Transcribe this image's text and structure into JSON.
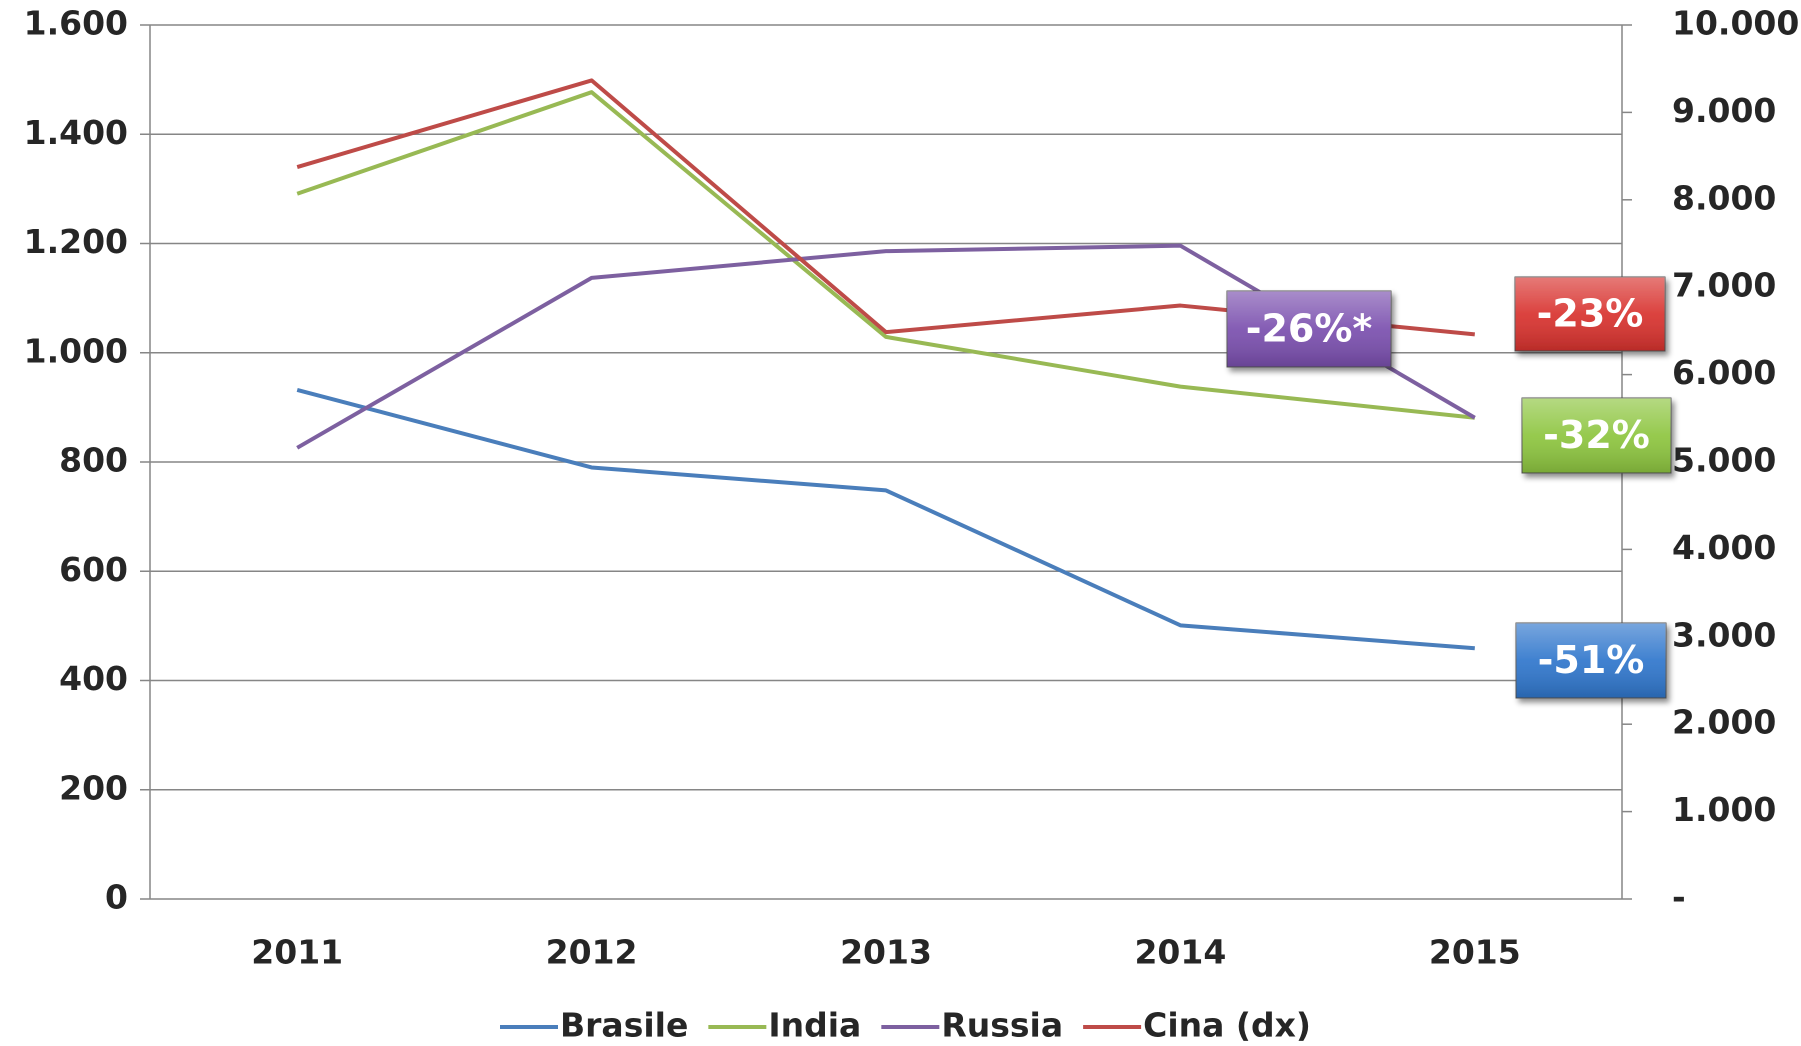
{
  "chart_data": {
    "type": "line",
    "categories": [
      "2011",
      "2012",
      "2013",
      "2014",
      "2015"
    ],
    "series": [
      {
        "name": "Brasile",
        "color": "#4a7ebb",
        "values": [
          932,
          790,
          748,
          501,
          459
        ]
      },
      {
        "name": "India",
        "color": "#98b954",
        "values": [
          1291,
          1477,
          1029,
          938,
          881
        ]
      },
      {
        "name": "Russia",
        "color": "#7d60a0",
        "values": [
          826,
          1137,
          1186,
          1196,
          881
        ]
      },
      {
        "name": "Cina (dx)",
        "color": "#be4b48",
        "axis": "y2",
        "values": [
          8375,
          9366,
          6486,
          6790,
          6460
        ]
      }
    ],
    "ylim": [
      0,
      1600
    ],
    "yticks": [
      0,
      200,
      400,
      600,
      800,
      {
        "value": 1000,
        "label": "1.000"
      },
      {
        "value": 1200,
        "label": "1.200"
      },
      {
        "value": 1400,
        "label": "1.400"
      },
      {
        "value": 1600,
        "label": "1.600"
      }
    ],
    "y2lim": [
      0,
      10000
    ],
    "y2ticks": [
      {
        "value": 0,
        "label": "-"
      },
      {
        "value": 1000,
        "label": "1.000"
      },
      {
        "value": 2000,
        "label": "2.000"
      },
      {
        "value": 3000,
        "label": "3.000"
      },
      {
        "value": 4000,
        "label": "4.000"
      },
      {
        "value": 5000,
        "label": "5.000"
      },
      {
        "value": 6000,
        "label": "6.000"
      },
      {
        "value": 7000,
        "label": "7.000"
      },
      {
        "value": 8000,
        "label": "8.000"
      },
      {
        "value": 9000,
        "label": "9.000"
      },
      {
        "value": 10000,
        "label": "10.000"
      }
    ],
    "grid": true,
    "legend": "bottom",
    "annotations": [
      {
        "text": "-26%*",
        "color": "#7a4fae"
      },
      {
        "text": "-23%",
        "color": "#d8322e"
      },
      {
        "text": "-32%",
        "color": "#8dc53f"
      },
      {
        "text": "-51%",
        "color": "#2f76cc"
      }
    ]
  }
}
